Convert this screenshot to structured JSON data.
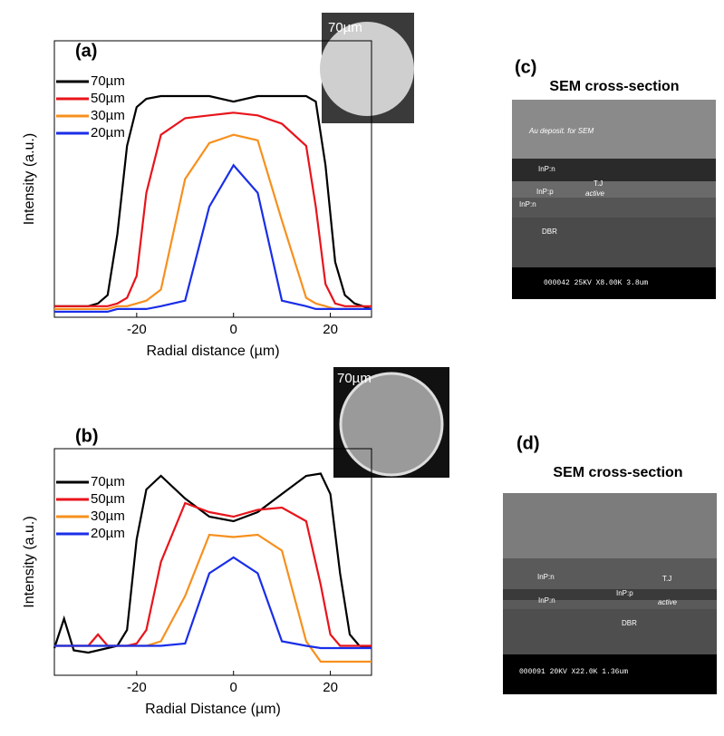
{
  "chart_data": [
    {
      "type": "line",
      "title": "(a)",
      "x_label": "Radial distance (µm)",
      "y_label": "Intensity (a.u.)",
      "x": [
        -37,
        -30,
        -28,
        -26,
        -24,
        -22,
        -20,
        -18,
        -15,
        -10,
        -5,
        0,
        5,
        10,
        15,
        17,
        19,
        21,
        23,
        25,
        28.5
      ],
      "series": [
        {
          "name": "70µm",
          "color": "#000000",
          "values": [
            0.04,
            0.04,
            0.05,
            0.08,
            0.3,
            0.62,
            0.76,
            0.79,
            0.8,
            0.8,
            0.8,
            0.78,
            0.8,
            0.8,
            0.8,
            0.78,
            0.55,
            0.2,
            0.08,
            0.05,
            0.03
          ]
        },
        {
          "name": "50µm",
          "color": "#e8141b",
          "values": [
            0.04,
            0.04,
            0.04,
            0.04,
            0.05,
            0.07,
            0.15,
            0.45,
            0.66,
            0.72,
            0.73,
            0.74,
            0.73,
            0.7,
            0.62,
            0.4,
            0.12,
            0.05,
            0.04,
            0.04,
            0.04
          ]
        },
        {
          "name": "30µm",
          "color": "#f7901e",
          "values": [
            0.03,
            0.03,
            0.03,
            0.03,
            0.04,
            0.04,
            0.05,
            0.06,
            0.1,
            0.5,
            0.63,
            0.66,
            0.64,
            0.35,
            0.07,
            0.05,
            0.04,
            0.03,
            0.03,
            0.03,
            0.03
          ]
        },
        {
          "name": "20µm",
          "color": "#1a2ee8",
          "values": [
            0.02,
            0.02,
            0.02,
            0.02,
            0.03,
            0.03,
            0.03,
            0.03,
            0.04,
            0.06,
            0.4,
            0.55,
            0.45,
            0.06,
            0.04,
            0.03,
            0.03,
            0.03,
            0.03,
            0.03,
            0.03
          ]
        }
      ],
      "xlim": [
        -37,
        28.5
      ],
      "ylim": [
        0,
        1
      ],
      "xticks": [
        -20,
        0,
        20
      ],
      "inset_label": "70µm"
    },
    {
      "type": "line",
      "title": "(b)",
      "x_label": "Radial Distance (µm)",
      "y_label": "Intensity (a.u.)",
      "x": [
        -37,
        -35,
        -33,
        -30,
        -28,
        -26,
        -24,
        -22,
        -20,
        -18,
        -15,
        -10,
        -5,
        0,
        5,
        10,
        15,
        18,
        20,
        22,
        24,
        26,
        28.5
      ],
      "series": [
        {
          "name": "70µm",
          "color": "#000000",
          "values": [
            0.12,
            0.25,
            0.11,
            0.1,
            0.11,
            0.12,
            0.13,
            0.2,
            0.6,
            0.82,
            0.88,
            0.78,
            0.7,
            0.68,
            0.72,
            0.8,
            0.88,
            0.89,
            0.8,
            0.45,
            0.18,
            0.13,
            0.12
          ]
        },
        {
          "name": "50µm",
          "color": "#e8141b",
          "values": [
            0.13,
            0.13,
            0.13,
            0.13,
            0.18,
            0.13,
            0.13,
            0.13,
            0.14,
            0.2,
            0.5,
            0.76,
            0.72,
            0.7,
            0.73,
            0.74,
            0.68,
            0.4,
            0.18,
            0.13,
            0.13,
            0.13,
            0.13
          ]
        },
        {
          "name": "30µm",
          "color": "#f7901e",
          "values": [
            0.13,
            0.13,
            0.13,
            0.13,
            0.13,
            0.13,
            0.13,
            0.13,
            0.13,
            0.13,
            0.15,
            0.35,
            0.62,
            0.61,
            0.62,
            0.55,
            0.15,
            0.06,
            0.06,
            0.06,
            0.06,
            0.06,
            0.06
          ]
        },
        {
          "name": "20µm",
          "color": "#1a2ee8",
          "values": [
            0.13,
            0.13,
            0.13,
            0.13,
            0.13,
            0.13,
            0.13,
            0.13,
            0.13,
            0.13,
            0.13,
            0.14,
            0.45,
            0.52,
            0.45,
            0.15,
            0.13,
            0.12,
            0.12,
            0.12,
            0.12,
            0.12,
            0.12
          ]
        }
      ],
      "xlim": [
        -37,
        28.5
      ],
      "ylim": [
        0,
        1
      ],
      "xticks": [
        -20,
        0,
        20
      ],
      "inset_label": "70µm"
    }
  ],
  "panels": [
    {
      "label": "(c)",
      "title": "SEM cross-section",
      "texts": [
        "Au deposit. for SEM",
        "InP:n",
        "T.J",
        "active",
        "InP:p",
        "InP:n",
        "DBR",
        "000042 25KV X8.00K 3.8um"
      ]
    },
    {
      "label": "(d)",
      "title": "SEM cross-section",
      "texts": [
        "InP:n",
        "T.J",
        "InP:p",
        "active",
        "InP:n",
        "DBR",
        "000091 20KV X22.0K 1.36um"
      ]
    }
  ]
}
